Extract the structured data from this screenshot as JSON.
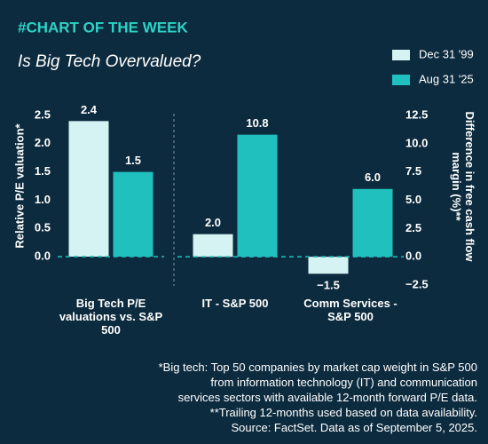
{
  "header": {
    "kicker": "#CHART OF THE WEEK",
    "title": "Is Big Tech Overvalued?"
  },
  "chart_data": [
    {
      "type": "bar",
      "y_label": "Relative P/E valuation*",
      "categories": [
        "Big Tech P/E valuations vs. S&P 500"
      ],
      "series": [
        {
          "name": "Dec 31 '99",
          "color": "#d4f3f2",
          "values": [
            2.4
          ],
          "value_labels": [
            "2.4"
          ]
        },
        {
          "name": "Aug 31 '25",
          "color": "#1fc0be",
          "values": [
            1.5
          ],
          "value_labels": [
            "1.5"
          ]
        }
      ],
      "ylim": [
        0,
        2.5
      ],
      "yticks": [
        {
          "value": 0,
          "label": "0.0"
        },
        0.5,
        {
          "value": 1,
          "label": "1.0"
        },
        1.5,
        {
          "value": 2,
          "label": "2.0"
        },
        2.5
      ]
    },
    {
      "type": "bar",
      "y_label": "Difference in free cash flow margin (%)**",
      "categories": [
        "IT - S&P 500",
        "Comm Services - S&P 500"
      ],
      "series": [
        {
          "color": "#d4f3f2",
          "values": [
            2.0,
            -1.5
          ],
          "value_labels": [
            "2.0",
            "−1.5"
          ]
        },
        {
          "color": "#1fc0be",
          "values": [
            10.8,
            6.0
          ],
          "value_labels": [
            "10.8",
            "6.0"
          ]
        }
      ],
      "ylim": [
        -2.5,
        12.5
      ],
      "yticks": [
        {
          "value": -2.5,
          "label": "−2.5"
        },
        {
          "value": 0,
          "label": "0.0"
        },
        2.5,
        {
          "value": 5,
          "label": "5.0"
        },
        7.5,
        {
          "value": 10,
          "label": "10.0"
        },
        12.5
      ]
    }
  ],
  "footnote": [
    "*Big tech: Top 50 companies by market cap weight in S&P 500",
    "from information technology (IT) and communication",
    "services sectors with available 12-month forward P/E data.",
    "**Trailing 12-months used based on data availability.",
    "Source: FactSet. Data as of September 5, 2025."
  ]
}
